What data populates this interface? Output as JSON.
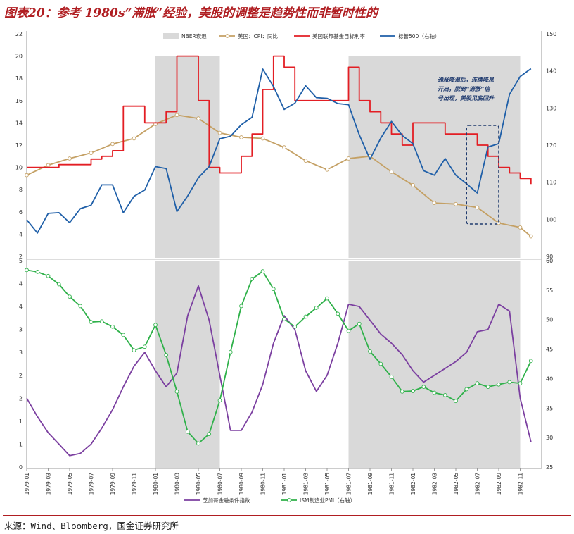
{
  "header": {
    "title": "图表20：参考 1980s“滞胀”经验，美股的调整是趋势性而非暂时性的"
  },
  "footer": {
    "source": "来源：Wind、Bloomberg，国金证券研究所"
  },
  "chart_data": [
    {
      "type": "line",
      "panel": "top",
      "x_range": [
        "1979-01",
        "1982-12"
      ],
      "ylim": [
        2,
        22
      ],
      "yticks": [
        2,
        4,
        6,
        8,
        10,
        12,
        14,
        16,
        18,
        20,
        22
      ],
      "y2lim": [
        90,
        150
      ],
      "y2ticks": [
        90,
        100,
        110,
        120,
        130,
        140,
        150
      ],
      "grid": false,
      "legend_position": "top",
      "recessions": {
        "name": "NBER衰退",
        "periods": [
          [
            "1980-01",
            "1980-07"
          ],
          [
            "1981-07",
            "1982-11"
          ]
        ]
      },
      "series": [
        {
          "name": "美国：CPI：同比",
          "axis": "left",
          "color": "#c4a064",
          "markers": true,
          "points": [
            [
              "1979-01",
              9.3
            ],
            [
              "1979-03",
              10.2
            ],
            [
              "1979-05",
              10.8
            ],
            [
              "1979-07",
              11.3
            ],
            [
              "1979-09",
              12.1
            ],
            [
              "1979-11",
              12.6
            ],
            [
              "1980-01",
              13.9
            ],
            [
              "1980-03",
              14.7
            ],
            [
              "1980-05",
              14.4
            ],
            [
              "1980-07",
              13.1
            ],
            [
              "1980-09",
              12.7
            ],
            [
              "1980-11",
              12.6
            ],
            [
              "1981-01",
              11.8
            ],
            [
              "1981-03",
              10.6
            ],
            [
              "1981-05",
              9.8
            ],
            [
              "1981-07",
              10.8
            ],
            [
              "1981-09",
              11.0
            ],
            [
              "1981-11",
              9.6
            ],
            [
              "1982-01",
              8.4
            ],
            [
              "1982-03",
              6.8
            ],
            [
              "1982-05",
              6.7
            ],
            [
              "1982-07",
              6.4
            ],
            [
              "1982-09",
              5.0
            ],
            [
              "1982-11",
              4.6
            ],
            [
              "1982-12",
              3.8
            ]
          ]
        },
        {
          "name": "美国联邦基金目标利率",
          "axis": "left",
          "color": "#e31e24",
          "step": true,
          "points": [
            [
              "1979-01",
              10.0
            ],
            [
              "1979-04",
              10.25
            ],
            [
              "1979-07",
              10.75
            ],
            [
              "1979-08",
              11.0
            ],
            [
              "1979-09",
              11.5
            ],
            [
              "1979-10",
              15.5
            ],
            [
              "1979-11",
              15.5
            ],
            [
              "1979-12",
              14.0
            ],
            [
              "1980-01",
              14.0
            ],
            [
              "1980-02",
              15.0
            ],
            [
              "1980-03",
              20.0
            ],
            [
              "1980-04",
              20.0
            ],
            [
              "1980-05",
              16.0
            ],
            [
              "1980-06",
              10.0
            ],
            [
              "1980-07",
              9.5
            ],
            [
              "1980-08",
              9.5
            ],
            [
              "1980-09",
              11.0
            ],
            [
              "1980-10",
              13.0
            ],
            [
              "1980-11",
              17.0
            ],
            [
              "1980-12",
              20.0
            ],
            [
              "1981-01",
              19.0
            ],
            [
              "1981-02",
              16.0
            ],
            [
              "1981-07",
              19.0
            ],
            [
              "1981-08",
              16.0
            ],
            [
              "1981-09",
              15.0
            ],
            [
              "1981-10",
              14.0
            ],
            [
              "1981-11",
              13.0
            ],
            [
              "1981-12",
              12.0
            ],
            [
              "1982-01",
              14.0
            ],
            [
              "1982-04",
              13.0
            ],
            [
              "1982-07",
              12.0
            ],
            [
              "1982-08",
              11.0
            ],
            [
              "1982-09",
              10.0
            ],
            [
              "1982-10",
              9.5
            ],
            [
              "1982-11",
              9.0
            ],
            [
              "1982-12",
              8.5
            ]
          ]
        },
        {
          "name": "标普500（右轴）",
          "axis": "right",
          "color": "#1f5fa8",
          "points": [
            [
              "1979-01",
              99.9
            ],
            [
              "1979-02",
              96.3
            ],
            [
              "1979-03",
              101.6
            ],
            [
              "1979-04",
              101.8
            ],
            [
              "1979-05",
              99.1
            ],
            [
              "1979-06",
              102.9
            ],
            [
              "1979-07",
              103.8
            ],
            [
              "1979-08",
              109.3
            ],
            [
              "1979-09",
              109.3
            ],
            [
              "1979-10",
              101.8
            ],
            [
              "1979-11",
              106.2
            ],
            [
              "1979-12",
              107.9
            ],
            [
              "1980-01",
              114.2
            ],
            [
              "1980-02",
              113.7
            ],
            [
              "1980-03",
              102.1
            ],
            [
              "1980-04",
              106.3
            ],
            [
              "1980-05",
              111.2
            ],
            [
              "1980-06",
              114.2
            ],
            [
              "1980-07",
              121.7
            ],
            [
              "1980-08",
              122.4
            ],
            [
              "1980-09",
              125.5
            ],
            [
              "1980-10",
              127.5
            ],
            [
              "1980-11",
              140.5
            ],
            [
              "1980-12",
              135.8
            ],
            [
              "1981-01",
              129.6
            ],
            [
              "1981-02",
              131.3
            ],
            [
              "1981-03",
              136.0
            ],
            [
              "1981-04",
              132.8
            ],
            [
              "1981-05",
              132.6
            ],
            [
              "1981-06",
              131.2
            ],
            [
              "1981-07",
              130.9
            ],
            [
              "1981-08",
              122.8
            ],
            [
              "1981-09",
              116.2
            ],
            [
              "1981-10",
              121.9
            ],
            [
              "1981-11",
              126.4
            ],
            [
              "1981-12",
              122.6
            ],
            [
              "1982-01",
              120.4
            ],
            [
              "1982-02",
              113.1
            ],
            [
              "1982-03",
              111.9
            ],
            [
              "1982-04",
              116.4
            ],
            [
              "1982-05",
              111.9
            ],
            [
              "1982-06",
              109.6
            ],
            [
              "1982-07",
              107.1
            ],
            [
              "1982-08",
              119.5
            ],
            [
              "1982-09",
              120.4
            ],
            [
              "1982-10",
              133.7
            ],
            [
              "1982-11",
              138.5
            ],
            [
              "1982-12",
              140.6
            ]
          ]
        }
      ],
      "annotation": {
        "text": [
          "通胀降温后，连续降息",
          "开启，脱离“滞胀”信",
          "号出现，美股见底回升"
        ],
        "box_range": [
          "1982-06",
          "1982-09"
        ]
      }
    },
    {
      "type": "line",
      "panel": "bottom",
      "x_range": [
        "1979-01",
        "1982-12"
      ],
      "xticks": [
        "1979-01",
        "1979-03",
        "1979-05",
        "1979-07",
        "1979-09",
        "1979-11",
        "1980-01",
        "1980-03",
        "1980-05",
        "1980-07",
        "1980-09",
        "1980-11",
        "1981-01",
        "1981-03",
        "1981-05",
        "1981-07",
        "1981-09",
        "1981-11",
        "1982-01",
        "1982-03",
        "1982-05",
        "1982-07",
        "1982-09",
        "1982-11"
      ],
      "ylim": [
        0,
        4.5
      ],
      "yticks": [
        0,
        0.5,
        1,
        1.5,
        2,
        2.5,
        3,
        3.5,
        4,
        4.5
      ],
      "ytick_labels": [
        "0",
        "1",
        "1",
        "2",
        "2",
        "3",
        "3",
        "4",
        "4",
        "5"
      ],
      "y2lim": [
        25,
        60
      ],
      "y2ticks": [
        25,
        30,
        35,
        40,
        45,
        50,
        55,
        60
      ],
      "grid": false,
      "legend_position": "bottom",
      "recessions": {
        "periods": [
          [
            "1980-01",
            "1980-07"
          ],
          [
            "1981-07",
            "1982-11"
          ]
        ]
      },
      "series": [
        {
          "name": "芝加哥金融条件指数",
          "axis": "left",
          "color": "#7b3fa0",
          "points": [
            [
              "1979-01",
              1.5
            ],
            [
              "1979-02",
              1.1
            ],
            [
              "1979-03",
              0.75
            ],
            [
              "1979-04",
              0.5
            ],
            [
              "1979-05",
              0.25
            ],
            [
              "1979-06",
              0.3
            ],
            [
              "1979-07",
              0.5
            ],
            [
              "1979-08",
              0.85
            ],
            [
              "1979-09",
              1.25
            ],
            [
              "1979-10",
              1.75
            ],
            [
              "1979-11",
              2.2
            ],
            [
              "1979-12",
              2.5
            ],
            [
              "1980-01",
              2.1
            ],
            [
              "1980-02",
              1.75
            ],
            [
              "1980-03",
              2.05
            ],
            [
              "1980-04",
              3.3
            ],
            [
              "1980-05",
              3.95
            ],
            [
              "1980-06",
              3.2
            ],
            [
              "1980-07",
              2.0
            ],
            [
              "1980-08",
              0.8
            ],
            [
              "1980-09",
              0.8
            ],
            [
              "1980-10",
              1.2
            ],
            [
              "1980-11",
              1.8
            ],
            [
              "1980-12",
              2.7
            ],
            [
              "1981-01",
              3.3
            ],
            [
              "1981-02",
              3.0
            ],
            [
              "1981-03",
              2.1
            ],
            [
              "1981-04",
              1.65
            ],
            [
              "1981-05",
              2.0
            ],
            [
              "1981-06",
              2.7
            ],
            [
              "1981-07",
              3.55
            ],
            [
              "1981-08",
              3.5
            ],
            [
              "1981-09",
              3.2
            ],
            [
              "1981-10",
              2.9
            ],
            [
              "1981-11",
              2.7
            ],
            [
              "1981-12",
              2.45
            ],
            [
              "1982-01",
              2.1
            ],
            [
              "1982-02",
              1.85
            ],
            [
              "1982-03",
              2.0
            ],
            [
              "1982-04",
              2.15
            ],
            [
              "1982-05",
              2.3
            ],
            [
              "1982-06",
              2.5
            ],
            [
              "1982-07",
              2.95
            ],
            [
              "1982-08",
              3.0
            ],
            [
              "1982-09",
              3.55
            ],
            [
              "1982-10",
              3.4
            ],
            [
              "1982-11",
              1.5
            ],
            [
              "1982-12",
              0.55
            ]
          ]
        },
        {
          "name": "ISM制造业PMI（右轴）",
          "axis": "right",
          "color": "#2fb14a",
          "markers": true,
          "points": [
            [
              "1979-01",
              58.4
            ],
            [
              "1979-02",
              58.1
            ],
            [
              "1979-03",
              57.4
            ],
            [
              "1979-04",
              56.0
            ],
            [
              "1979-05",
              53.9
            ],
            [
              "1979-06",
              52.3
            ],
            [
              "1979-07",
              49.6
            ],
            [
              "1979-08",
              49.7
            ],
            [
              "1979-09",
              48.8
            ],
            [
              "1979-10",
              47.4
            ],
            [
              "1979-11",
              44.8
            ],
            [
              "1979-12",
              45.4
            ],
            [
              "1980-01",
              49.1
            ],
            [
              "1980-02",
              44.0
            ],
            [
              "1980-03",
              37.8
            ],
            [
              "1980-04",
              31.0
            ],
            [
              "1980-05",
              29.0
            ],
            [
              "1980-06",
              30.6
            ],
            [
              "1980-07",
              36.3
            ],
            [
              "1980-08",
              44.5
            ],
            [
              "1980-09",
              52.3
            ],
            [
              "1980-10",
              56.9
            ],
            [
              "1980-11",
              58.2
            ],
            [
              "1980-12",
              55.2
            ],
            [
              "1981-01",
              50.1
            ],
            [
              "1981-02",
              48.8
            ],
            [
              "1981-03",
              50.5
            ],
            [
              "1981-04",
              52.0
            ],
            [
              "1981-05",
              53.6
            ],
            [
              "1981-06",
              51.0
            ],
            [
              "1981-07",
              48.1
            ],
            [
              "1981-08",
              49.3
            ],
            [
              "1981-09",
              44.6
            ],
            [
              "1981-10",
              42.5
            ],
            [
              "1981-11",
              40.3
            ],
            [
              "1981-12",
              37.8
            ],
            [
              "1982-01",
              37.9
            ],
            [
              "1982-02",
              38.6
            ],
            [
              "1982-03",
              37.6
            ],
            [
              "1982-04",
              37.2
            ],
            [
              "1982-05",
              36.2
            ],
            [
              "1982-06",
              38.2
            ],
            [
              "1982-07",
              39.2
            ],
            [
              "1982-08",
              38.6
            ],
            [
              "1982-09",
              39.0
            ],
            [
              "1982-10",
              39.4
            ],
            [
              "1982-11",
              39.2
            ],
            [
              "1982-12",
              43.0
            ]
          ]
        }
      ]
    }
  ]
}
